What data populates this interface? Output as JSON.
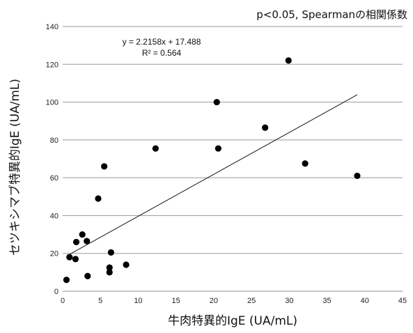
{
  "header": {
    "note": "p<0.05, Spearmanの相関係数"
  },
  "chart_data": {
    "type": "scatter",
    "xlabel": "牛肉特異的IgE (UA/mL)",
    "ylabel": "セツキシマブ特異的IgE (UA/mL)",
    "xlim": [
      0,
      45
    ],
    "ylim": [
      0,
      140
    ],
    "x_ticks": [
      0,
      5,
      10,
      15,
      20,
      25,
      30,
      35,
      40,
      45
    ],
    "y_ticks": [
      0,
      20,
      40,
      60,
      80,
      100,
      120,
      140
    ],
    "grid": "horizontal",
    "points": [
      {
        "x": 0.5,
        "y": 6
      },
      {
        "x": 0.9,
        "y": 18
      },
      {
        "x": 1.7,
        "y": 17
      },
      {
        "x": 1.8,
        "y": 26
      },
      {
        "x": 2.6,
        "y": 30
      },
      {
        "x": 3.2,
        "y": 26.5
      },
      {
        "x": 3.3,
        "y": 8
      },
      {
        "x": 4.7,
        "y": 49
      },
      {
        "x": 5.5,
        "y": 66
      },
      {
        "x": 6.2,
        "y": 10
      },
      {
        "x": 6.2,
        "y": 12.5
      },
      {
        "x": 6.4,
        "y": 20.5
      },
      {
        "x": 8.4,
        "y": 14
      },
      {
        "x": 12.3,
        "y": 75.5
      },
      {
        "x": 20.4,
        "y": 100
      },
      {
        "x": 20.6,
        "y": 75.5
      },
      {
        "x": 26.8,
        "y": 86.5
      },
      {
        "x": 29.9,
        "y": 122
      },
      {
        "x": 32.1,
        "y": 67.5
      },
      {
        "x": 39.0,
        "y": 61
      }
    ],
    "trendline": {
      "slope": 2.2158,
      "intercept": 17.488,
      "x_range": [
        1,
        39
      ]
    },
    "equation": "y = 2.2158x + 17.488",
    "r_squared": "R² = 0.564"
  }
}
